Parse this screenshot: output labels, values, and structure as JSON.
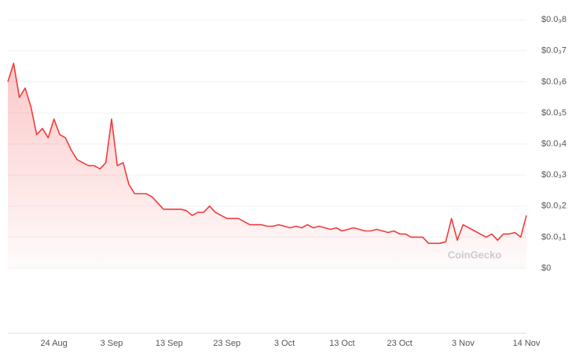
{
  "chart_data": {
    "type": "area",
    "categories": [
      null,
      null,
      null,
      null,
      null,
      null,
      null,
      null,
      "24 Aug",
      null,
      null,
      null,
      null,
      null,
      null,
      null,
      null,
      null,
      "3 Sep",
      null,
      null,
      null,
      null,
      null,
      null,
      null,
      null,
      null,
      "13 Sep",
      null,
      null,
      null,
      null,
      null,
      null,
      null,
      null,
      null,
      "23 Sep",
      null,
      null,
      null,
      null,
      null,
      null,
      null,
      null,
      null,
      "3 Oct",
      null,
      null,
      null,
      null,
      null,
      null,
      null,
      null,
      null,
      "13 Oct",
      null,
      null,
      null,
      null,
      null,
      null,
      null,
      null,
      null,
      "23 Oct",
      null,
      null,
      null,
      null,
      null,
      null,
      null,
      null,
      null,
      null,
      "3 Nov",
      null,
      null,
      null,
      null,
      null,
      null,
      null,
      null,
      null,
      null,
      "14 Nov"
    ],
    "series": [
      {
        "color": "#f23b3b",
        "values": [
          0.0006,
          0.00066,
          0.00055,
          0.00058,
          0.00052,
          0.00043,
          0.00045,
          0.00042,
          0.00048,
          0.00043,
          0.00042,
          0.00038,
          0.00035,
          0.00034,
          0.00033,
          0.00033,
          0.00032,
          0.00034,
          0.00048,
          0.00033,
          0.00034,
          0.00027,
          0.00024,
          0.00024,
          0.00024,
          0.00023,
          0.00021,
          0.00019,
          0.00019,
          0.00019,
          0.00019,
          0.000185,
          0.00017,
          0.00018,
          0.00018,
          0.0002,
          0.00018,
          0.00017,
          0.00016,
          0.00016,
          0.00016,
          0.00015,
          0.00014,
          0.00014,
          0.00014,
          0.000135,
          0.000135,
          0.00014,
          0.000135,
          0.00013,
          0.000135,
          0.00013,
          0.00014,
          0.00013,
          0.000135,
          0.00013,
          0.000125,
          0.00013,
          0.00012,
          0.000125,
          0.00013,
          0.000125,
          0.00012,
          0.00012,
          0.000125,
          0.00012,
          0.000115,
          0.00012,
          0.00011,
          0.00011,
          0.0001,
          0.0001,
          0.0001,
          8e-05,
          8e-05,
          8e-05,
          8.5e-05,
          0.00016,
          9e-05,
          0.00014,
          0.00013,
          0.00012,
          0.00011,
          0.0001,
          0.00011,
          9e-05,
          0.00011,
          0.00011,
          0.000115,
          0.0001,
          0.00017
        ]
      }
    ],
    "ylim": [
      0,
      0.00085
    ],
    "yticks": [
      {
        "value": 0,
        "label": "$0"
      },
      {
        "value": 0.0001,
        "label": "$0.0₃1"
      },
      {
        "value": 0.0002,
        "label": "$0.0₃2"
      },
      {
        "value": 0.0003,
        "label": "$0.0₃3"
      },
      {
        "value": 0.0004,
        "label": "$0.0₃4"
      },
      {
        "value": 0.0005,
        "label": "$0.0₃5"
      },
      {
        "value": 0.0006,
        "label": "$0.0₃6"
      },
      {
        "value": 0.0007,
        "label": "$0.0₃7"
      },
      {
        "value": 0.0008,
        "label": "$0.0₃8"
      }
    ],
    "grid": true,
    "watermark": "CoinGecko"
  }
}
